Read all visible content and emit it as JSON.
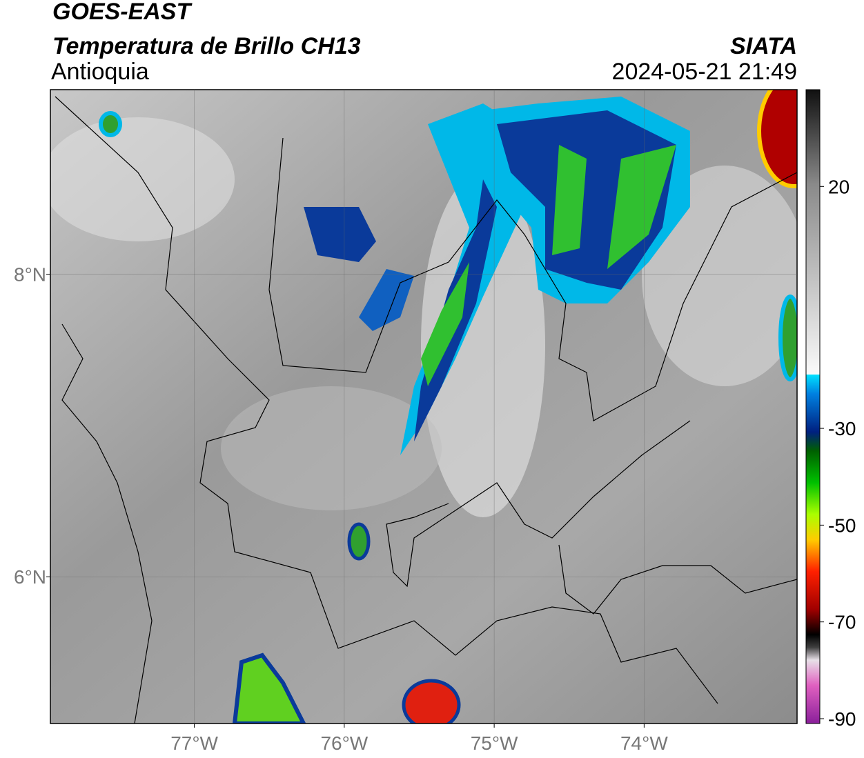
{
  "header": {
    "title": "GOES-EAST",
    "subtitle": "Temperatura de Brillo CH13",
    "region": "Antioquia",
    "source": "SIATA",
    "datetime": "2024-05-21 21:49"
  },
  "map": {
    "xlim": [
      -77.96,
      -72.98
    ],
    "ylim": [
      5.03,
      9.22
    ],
    "xticks": [
      {
        "value": -77,
        "label": "77°W"
      },
      {
        "value": -76,
        "label": "76°W"
      },
      {
        "value": -75,
        "label": "75°W"
      },
      {
        "value": -74,
        "label": "74°W"
      }
    ],
    "yticks": [
      {
        "value": 8,
        "label": "8°N"
      },
      {
        "value": 6,
        "label": "6°N"
      }
    ],
    "grid": true
  },
  "colorbar": {
    "clim": [
      -91,
      40
    ],
    "ticks": [
      20,
      -30,
      -50,
      -70,
      -90
    ]
  }
}
